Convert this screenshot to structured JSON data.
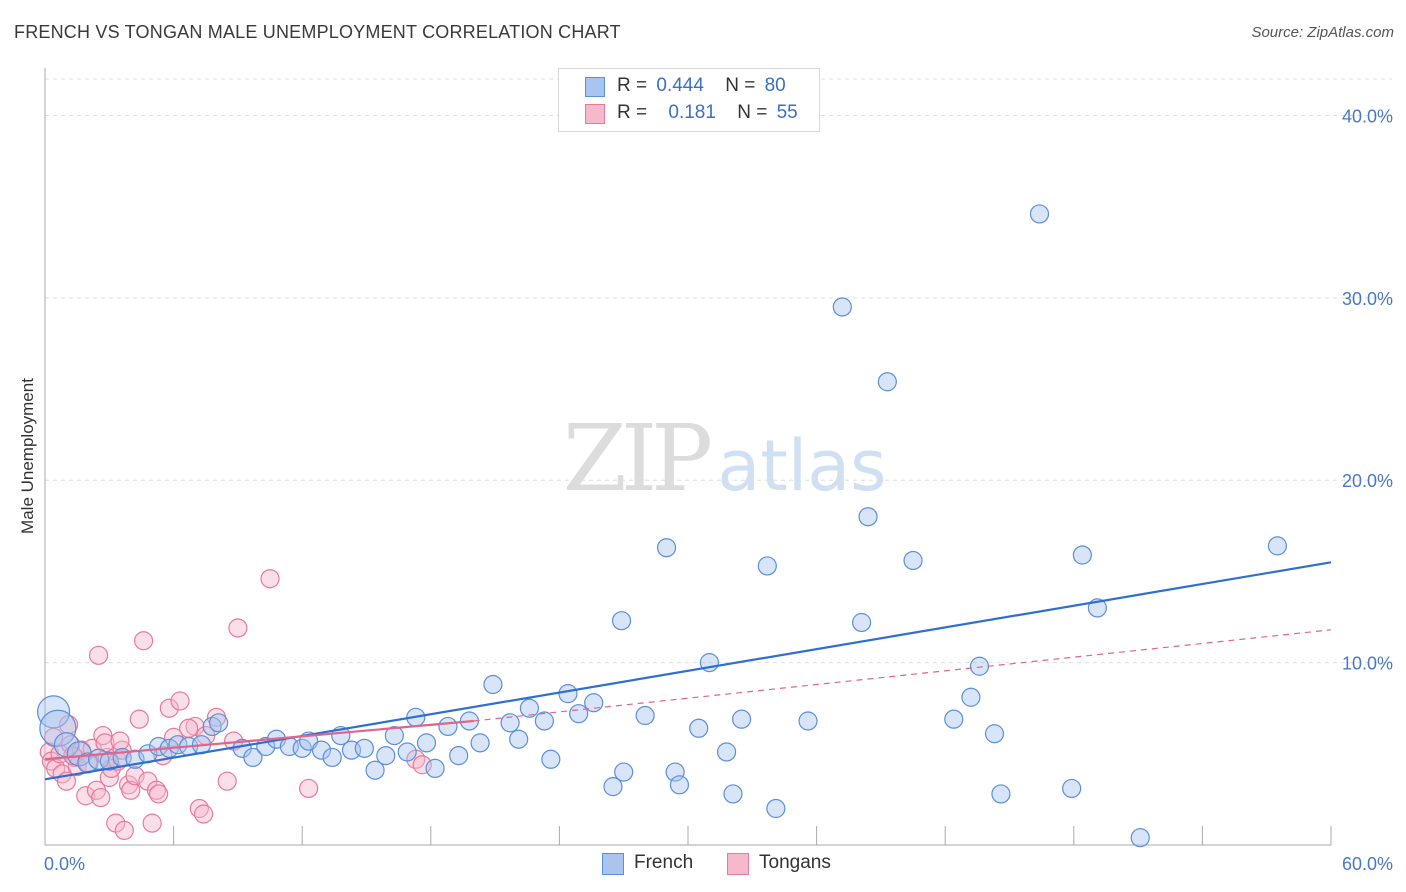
{
  "title": "FRENCH VS TONGAN MALE UNEMPLOYMENT CORRELATION CHART",
  "source": "Source: ZipAtlas.com",
  "watermark": {
    "zip": "ZIP",
    "atlas": "atlas"
  },
  "legend": {
    "r_label": "R =",
    "n_label": "N =",
    "rows": [
      {
        "r": "0.444",
        "n": "80"
      },
      {
        "r": "0.181",
        "n": "55"
      }
    ]
  },
  "colors": {
    "french_fill": "#a9c4ee",
    "french_stroke": "#5b8fd9",
    "french_line": "#2e6fd1",
    "tongan_fill": "#f6b9cc",
    "tongan_stroke": "#e8799c",
    "tongan_line": "#e0648c",
    "grid": "#dddddd",
    "axis": "#aaaaaa",
    "tick_text": "#4a78c4"
  },
  "chart_data": {
    "type": "scatter",
    "title": "FRENCH VS TONGAN MALE UNEMPLOYMENT CORRELATION CHART",
    "xlabel": "",
    "ylabel": "Male Unemployment",
    "xlim": [
      0,
      60
    ],
    "ylim": [
      0,
      42
    ],
    "x_ticks": [
      0,
      6,
      12,
      18,
      24,
      30,
      36,
      42,
      48,
      54,
      60
    ],
    "x_tick_labels": [
      {
        "value": 0,
        "label": "0.0%"
      },
      {
        "value": 60,
        "label": "60.0%"
      }
    ],
    "y_ticks": [
      {
        "value": 10,
        "label": "10.0%"
      },
      {
        "value": 20,
        "label": "20.0%"
      },
      {
        "value": 30,
        "label": "30.0%"
      },
      {
        "value": 40,
        "label": "40.0%"
      }
    ],
    "grid": "horizontal dashed",
    "legend_position": "top-center",
    "series": [
      {
        "name": "French",
        "r": 0.444,
        "n": 80,
        "trend": {
          "x": [
            0,
            60
          ],
          "y": [
            3.6,
            15.5
          ],
          "style": "solid"
        },
        "points": [
          [
            0.4,
            7.3,
            16
          ],
          [
            0.6,
            6.4,
            18
          ],
          [
            1.0,
            5.5,
            12
          ],
          [
            1.6,
            5.0,
            12
          ],
          [
            2.0,
            4.5,
            10
          ],
          [
            2.5,
            4.7,
            10
          ],
          [
            3.0,
            4.6,
            9
          ],
          [
            3.6,
            4.8,
            9
          ],
          [
            4.2,
            4.7,
            9
          ],
          [
            4.8,
            5.0,
            9
          ],
          [
            5.3,
            5.4,
            9
          ],
          [
            5.8,
            5.3,
            9
          ],
          [
            6.2,
            5.5,
            9
          ],
          [
            6.7,
            5.4,
            9
          ],
          [
            7.3,
            5.5,
            9
          ],
          [
            7.8,
            6.5,
            9
          ],
          [
            8.1,
            6.7,
            9
          ],
          [
            9.2,
            5.3,
            9
          ],
          [
            9.7,
            4.8,
            9
          ],
          [
            10.3,
            5.4,
            9
          ],
          [
            10.8,
            5.8,
            9
          ],
          [
            11.4,
            5.4,
            9
          ],
          [
            12.0,
            5.3,
            9
          ],
          [
            12.3,
            5.7,
            9
          ],
          [
            12.9,
            5.2,
            9
          ],
          [
            13.4,
            4.8,
            9
          ],
          [
            13.8,
            6.0,
            9
          ],
          [
            14.3,
            5.2,
            9
          ],
          [
            14.9,
            5.3,
            9
          ],
          [
            15.4,
            4.1,
            9
          ],
          [
            15.9,
            4.9,
            9
          ],
          [
            16.3,
            6.0,
            9
          ],
          [
            16.9,
            5.1,
            9
          ],
          [
            17.3,
            7.0,
            9
          ],
          [
            17.8,
            5.6,
            9
          ],
          [
            18.2,
            4.2,
            9
          ],
          [
            18.8,
            6.5,
            9
          ],
          [
            19.3,
            4.9,
            9
          ],
          [
            19.8,
            6.8,
            9
          ],
          [
            20.3,
            5.6,
            9
          ],
          [
            20.9,
            8.8,
            9
          ],
          [
            21.7,
            6.7,
            9
          ],
          [
            22.1,
            5.8,
            9
          ],
          [
            22.6,
            7.5,
            9
          ],
          [
            23.3,
            6.8,
            9
          ],
          [
            23.6,
            4.7,
            9
          ],
          [
            24.4,
            8.3,
            9
          ],
          [
            24.9,
            7.2,
            9
          ],
          [
            25.6,
            7.8,
            9
          ],
          [
            26.5,
            3.2,
            9
          ],
          [
            26.9,
            12.3,
            9
          ],
          [
            27.0,
            4.0,
            9
          ],
          [
            28.0,
            7.1,
            9
          ],
          [
            29.0,
            16.3,
            9
          ],
          [
            29.4,
            4.0,
            9
          ],
          [
            29.6,
            3.3,
            9
          ],
          [
            30.5,
            6.4,
            9
          ],
          [
            31.0,
            10.0,
            9
          ],
          [
            31.8,
            5.1,
            9
          ],
          [
            32.1,
            2.8,
            9
          ],
          [
            32.5,
            6.9,
            9
          ],
          [
            33.7,
            15.3,
            9
          ],
          [
            34.1,
            2.0,
            9
          ],
          [
            35.6,
            6.8,
            9
          ],
          [
            37.2,
            29.5,
            9
          ],
          [
            38.1,
            12.2,
            9
          ],
          [
            38.4,
            18.0,
            9
          ],
          [
            39.3,
            25.4,
            9
          ],
          [
            40.5,
            15.6,
            9
          ],
          [
            42.4,
            6.9,
            9
          ],
          [
            43.2,
            8.1,
            9
          ],
          [
            43.6,
            9.8,
            9
          ],
          [
            44.3,
            6.1,
            9
          ],
          [
            44.6,
            2.8,
            9
          ],
          [
            46.4,
            34.6,
            9
          ],
          [
            47.9,
            3.1,
            9
          ],
          [
            48.4,
            15.9,
            9
          ],
          [
            49.1,
            13.0,
            9
          ],
          [
            51.1,
            0.4,
            9
          ],
          [
            57.5,
            16.4,
            9
          ]
        ]
      },
      {
        "name": "Tongans",
        "r": 0.181,
        "n": 55,
        "trend": {
          "x": [
            0,
            20
          ],
          "y": [
            4.7,
            6.8
          ],
          "style": "solid",
          "extension": {
            "x": [
              20,
              60
            ],
            "y": [
              6.8,
              11.8
            ],
            "style": "dashed"
          }
        },
        "points": [
          [
            0.2,
            5.1,
            9
          ],
          [
            0.3,
            4.6,
            9
          ],
          [
            0.5,
            4.2,
            9
          ],
          [
            0.7,
            5.0,
            9
          ],
          [
            0.8,
            3.9,
            9
          ],
          [
            1.0,
            3.5,
            9
          ],
          [
            1.2,
            5.5,
            9
          ],
          [
            1.4,
            4.8,
            9
          ],
          [
            1.5,
            4.3,
            9
          ],
          [
            1.7,
            5.2,
            9
          ],
          [
            1.9,
            2.7,
            9
          ],
          [
            2.0,
            4.5,
            9
          ],
          [
            2.2,
            5.3,
            9
          ],
          [
            2.4,
            3.0,
            9
          ],
          [
            2.5,
            10.4,
            9
          ],
          [
            2.6,
            2.6,
            9
          ],
          [
            2.7,
            6.0,
            9
          ],
          [
            2.9,
            4.8,
            9
          ],
          [
            3.0,
            3.7,
            9
          ],
          [
            3.1,
            4.2,
            9
          ],
          [
            3.3,
            1.2,
            9
          ],
          [
            3.4,
            4.6,
            9
          ],
          [
            3.6,
            5.2,
            9
          ],
          [
            3.7,
            0.8,
            9
          ],
          [
            3.9,
            3.3,
            9
          ],
          [
            4.0,
            3.0,
            9
          ],
          [
            4.2,
            3.8,
            9
          ],
          [
            4.4,
            6.9,
            9
          ],
          [
            4.6,
            11.2,
            9
          ],
          [
            4.8,
            3.5,
            9
          ],
          [
            5.0,
            1.2,
            9
          ],
          [
            5.2,
            3.0,
            9
          ],
          [
            5.5,
            4.9,
            9
          ],
          [
            5.8,
            7.5,
            9
          ],
          [
            6.0,
            5.9,
            9
          ],
          [
            6.3,
            7.9,
            9
          ],
          [
            7.0,
            6.5,
            9
          ],
          [
            7.2,
            2.0,
            9
          ],
          [
            7.4,
            1.7,
            9
          ],
          [
            7.5,
            6.0,
            9
          ],
          [
            8.0,
            7.0,
            9
          ],
          [
            8.5,
            3.5,
            9
          ],
          [
            8.8,
            5.7,
            9
          ],
          [
            9.0,
            11.9,
            9
          ],
          [
            10.5,
            14.6,
            9
          ],
          [
            12.3,
            3.1,
            9
          ],
          [
            17.3,
            4.7,
            9
          ],
          [
            17.6,
            4.4,
            9
          ],
          [
            1.1,
            6.6,
            9
          ],
          [
            2.8,
            5.6,
            9
          ],
          [
            0.4,
            5.9,
            9
          ],
          [
            1.3,
            4.9,
            9
          ],
          [
            5.3,
            2.8,
            9
          ],
          [
            6.7,
            6.4,
            9
          ],
          [
            3.5,
            5.7,
            9
          ]
        ]
      }
    ]
  }
}
